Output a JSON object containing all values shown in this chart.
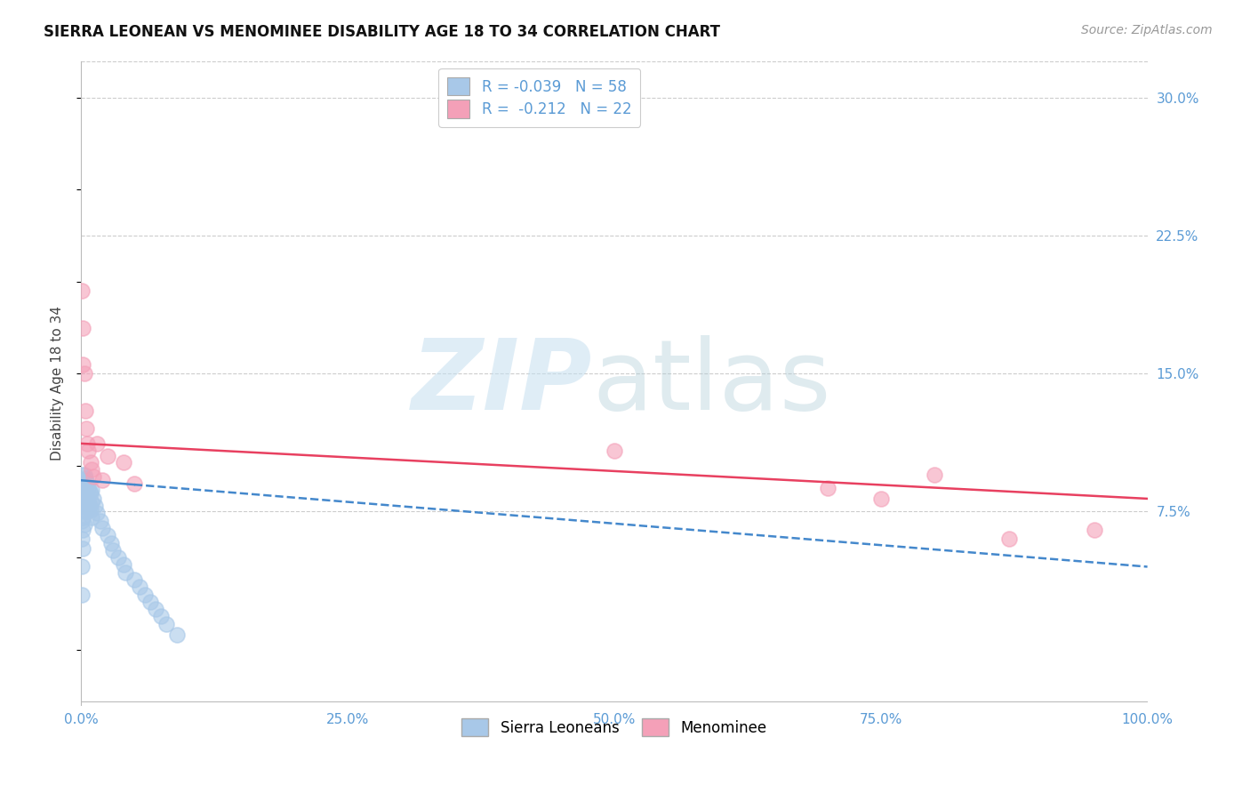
{
  "title": "SIERRA LEONEAN VS MENOMINEE DISABILITY AGE 18 TO 34 CORRELATION CHART",
  "source": "Source: ZipAtlas.com",
  "ylabel": "Disability Age 18 to 34",
  "xlim": [
    0.0,
    1.0
  ],
  "ylim": [
    -0.03,
    0.32
  ],
  "yticks": [
    0.075,
    0.15,
    0.225,
    0.3
  ],
  "ytick_labels": [
    "7.5%",
    "15.0%",
    "22.5%",
    "30.0%"
  ],
  "xticks": [
    0.0,
    0.25,
    0.5,
    0.75,
    1.0
  ],
  "xtick_labels": [
    "0.0%",
    "25.0%",
    "50.0%",
    "75.0%",
    "100.0%"
  ],
  "sierra_R": -0.039,
  "sierra_N": 58,
  "menominee_R": -0.212,
  "menominee_N": 22,
  "sierra_color": "#a8c8e8",
  "menominee_color": "#f4a0b8",
  "sierra_line_color": "#4488cc",
  "menominee_line_color": "#e84060",
  "sierra_x": [
    0.001,
    0.001,
    0.001,
    0.001,
    0.001,
    0.001,
    0.001,
    0.001,
    0.002,
    0.002,
    0.002,
    0.002,
    0.002,
    0.002,
    0.002,
    0.003,
    0.003,
    0.003,
    0.003,
    0.003,
    0.004,
    0.004,
    0.004,
    0.004,
    0.005,
    0.005,
    0.005,
    0.006,
    0.006,
    0.006,
    0.007,
    0.007,
    0.008,
    0.008,
    0.009,
    0.009,
    0.01,
    0.01,
    0.01,
    0.012,
    0.013,
    0.015,
    0.018,
    0.02,
    0.025,
    0.028,
    0.03,
    0.035,
    0.04,
    0.042,
    0.05,
    0.055,
    0.06,
    0.065,
    0.07,
    0.075,
    0.08,
    0.09
  ],
  "sierra_y": [
    0.095,
    0.09,
    0.085,
    0.08,
    0.07,
    0.06,
    0.045,
    0.03,
    0.092,
    0.088,
    0.083,
    0.078,
    0.072,
    0.065,
    0.055,
    0.095,
    0.09,
    0.085,
    0.078,
    0.068,
    0.093,
    0.088,
    0.082,
    0.075,
    0.091,
    0.085,
    0.078,
    0.09,
    0.083,
    0.075,
    0.088,
    0.08,
    0.086,
    0.078,
    0.085,
    0.076,
    0.087,
    0.08,
    0.072,
    0.082,
    0.078,
    0.074,
    0.07,
    0.066,
    0.062,
    0.058,
    0.054,
    0.05,
    0.046,
    0.042,
    0.038,
    0.034,
    0.03,
    0.026,
    0.022,
    0.018,
    0.014,
    0.008
  ],
  "menominee_x": [
    0.001,
    0.002,
    0.002,
    0.003,
    0.004,
    0.005,
    0.006,
    0.007,
    0.009,
    0.01,
    0.012,
    0.015,
    0.02,
    0.025,
    0.04,
    0.05,
    0.5,
    0.7,
    0.75,
    0.8,
    0.87,
    0.95
  ],
  "menominee_y": [
    0.195,
    0.175,
    0.155,
    0.15,
    0.13,
    0.12,
    0.112,
    0.108,
    0.102,
    0.098,
    0.094,
    0.112,
    0.092,
    0.105,
    0.102,
    0.09,
    0.108,
    0.088,
    0.082,
    0.095,
    0.06,
    0.065
  ],
  "menominee_line_start_y": 0.112,
  "menominee_line_end_y": 0.082,
  "sierra_line_start_y": 0.092,
  "sierra_line_end_y": 0.045
}
